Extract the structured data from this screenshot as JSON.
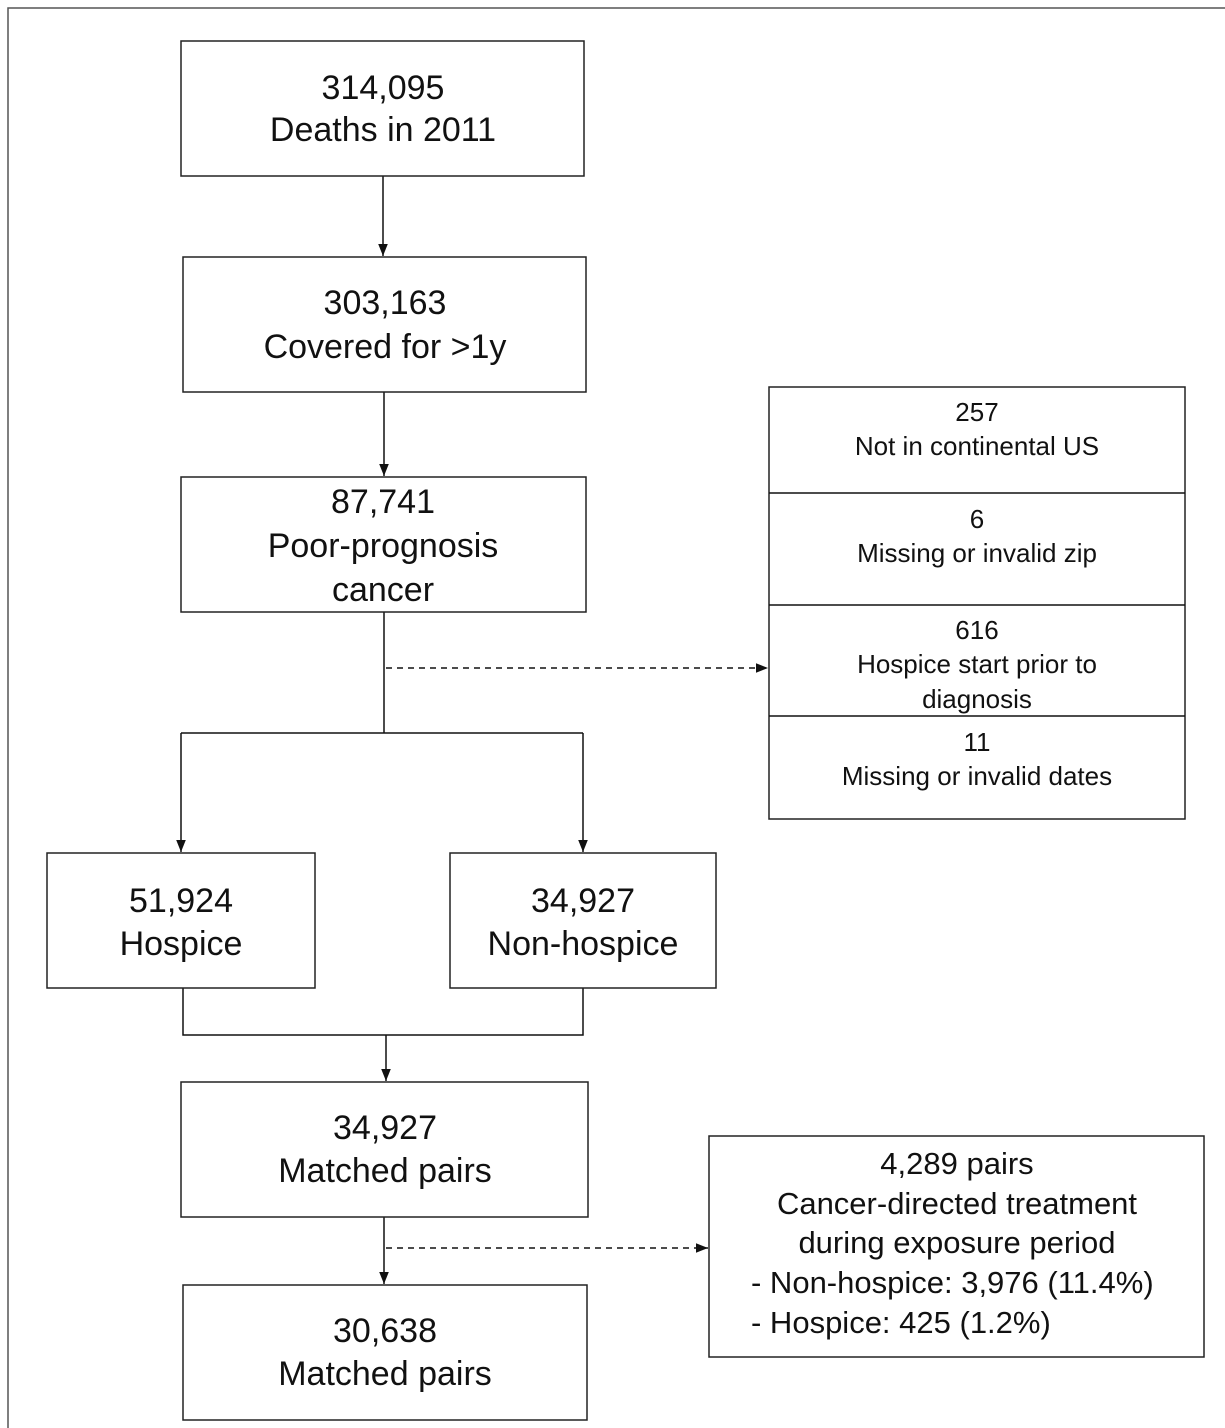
{
  "nodes": [
    {
      "lines": [
        "314,095",
        "Deaths in 2011"
      ]
    },
    {
      "lines": [
        "303,163",
        "Covered for >1y"
      ]
    },
    {
      "lines": [
        "87,741",
        "Poor-prognosis",
        "cancer"
      ]
    },
    {
      "lines": [
        "51,924",
        "Hospice"
      ]
    },
    {
      "lines": [
        "34,927",
        "Non-hospice"
      ]
    },
    {
      "lines": [
        "34,927",
        "Matched pairs"
      ]
    },
    {
      "lines": [
        "30,638",
        "Matched pairs"
      ]
    }
  ],
  "exclusions": [
    {
      "lines": [
        "257",
        "Not in continental US"
      ]
    },
    {
      "lines": [
        "6",
        "Missing or invalid zip"
      ]
    },
    {
      "lines": [
        "616",
        "Hospice start prior to",
        "diagnosis"
      ]
    },
    {
      "lines": [
        "11",
        "Missing or invalid dates"
      ]
    }
  ],
  "treatment": {
    "lines": [
      "4,289 pairs",
      "Cancer-directed treatment",
      "during exposure period",
      "- Non-hospice: 3,976 (11.4%)",
      "- Hospice: 425 (1.2%)"
    ]
  }
}
